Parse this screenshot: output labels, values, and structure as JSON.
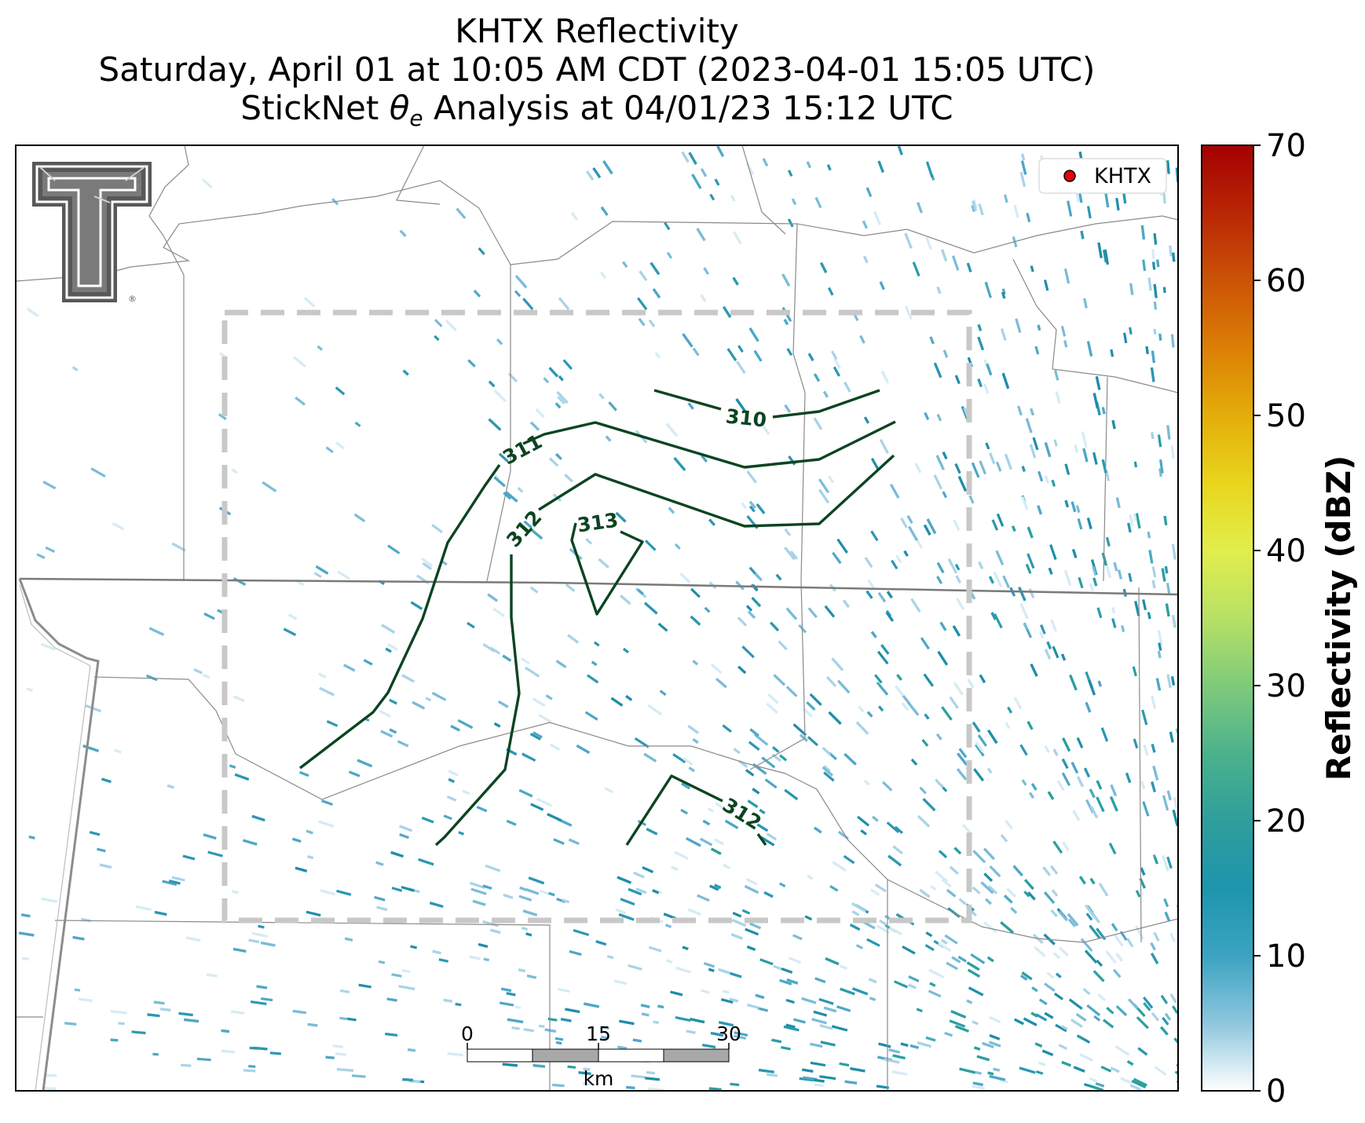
{
  "title": {
    "line1": "KHTX Reflectivity",
    "line2": "Saturday, April 01 at 10:05 AM CDT (2023-04-01 15:05 UTC)",
    "line3_prefix": "StickNet ",
    "line3_symbol": "θ",
    "line3_subscript": "e",
    "line3_suffix": " Analysis at 04/01/23 15:12 UTC"
  },
  "legend": {
    "label": "KHTX",
    "marker_color": "#e8000b"
  },
  "logo": {
    "name": "Texas Tech Double T",
    "mark": "®"
  },
  "colorbar": {
    "label": "Reflectivity (dBZ)",
    "min": 0,
    "max": 70,
    "ticks": [
      "0",
      "10",
      "20",
      "30",
      "40",
      "50",
      "60",
      "70"
    ],
    "colors": [
      "#ffffff",
      "#8ec6dd",
      "#3ba3c1",
      "#1e95ad",
      "#2f9e9c",
      "#4cb28c",
      "#7fca7b",
      "#b7e065",
      "#e2ee4c",
      "#e8d51c",
      "#e4ad0a",
      "#dc7f05",
      "#cb5307",
      "#b92606",
      "#a50000"
    ]
  },
  "contours": {
    "color": "#0b4421",
    "labels": [
      "310",
      "311",
      "312",
      "313",
      "312"
    ]
  },
  "scale_bar": {
    "ticks": [
      "0",
      "15",
      "30"
    ],
    "unit": "km"
  },
  "analysis_box": {
    "style": "dashed",
    "color": "#c8c8c8"
  }
}
